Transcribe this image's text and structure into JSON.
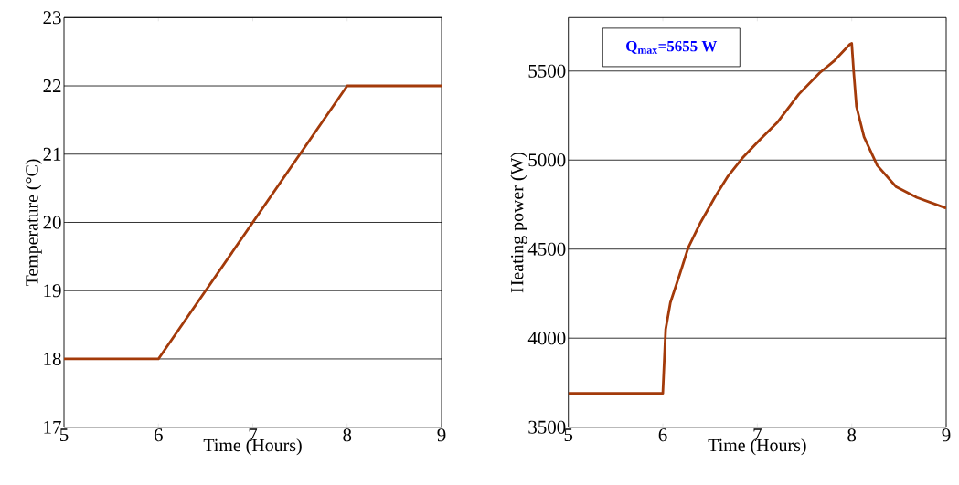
{
  "chart_data": [
    {
      "type": "line",
      "xlabel": "Time (Hours)",
      "ylabel": "Temperature (°C)",
      "xlim": [
        5,
        9
      ],
      "ylim": [
        17,
        23
      ],
      "xticks": [
        5,
        6,
        7,
        8,
        9
      ],
      "yticks": [
        17,
        18,
        19,
        20,
        21,
        22,
        23
      ],
      "grid": "y",
      "x": [
        5,
        6,
        8,
        9
      ],
      "series": [
        {
          "color": "#a33a0a",
          "values": [
            18,
            18,
            22,
            22
          ]
        }
      ]
    },
    {
      "type": "line",
      "xlabel": "Time (Hours)",
      "ylabel": "Heating power (W)",
      "xlim": [
        5,
        9
      ],
      "ylim": [
        3500,
        5800
      ],
      "xticks": [
        5,
        6,
        7,
        8,
        9
      ],
      "yticks": [
        3500,
        4000,
        4500,
        5000,
        5500
      ],
      "grid": "y",
      "annotations": [
        "Q$_{max}$=5655 W"
      ],
      "x": [
        5,
        6,
        6.03,
        6.08,
        6.18,
        6.27,
        6.4,
        6.56,
        6.69,
        6.84,
        7.02,
        7.21,
        7.44,
        7.66,
        7.82,
        7.98,
        8,
        8.02,
        8.05,
        8.13,
        8.27,
        8.47,
        8.69,
        9
      ],
      "series": [
        {
          "color": "#a33a0a",
          "values": [
            3690,
            3690,
            4050,
            4200,
            4360,
            4510,
            4650,
            4800,
            4910,
            5010,
            5110,
            5210,
            5370,
            5490,
            5560,
            5650,
            5655,
            5500,
            5300,
            5130,
            4970,
            4850,
            4790,
            4730
          ]
        }
      ]
    }
  ]
}
